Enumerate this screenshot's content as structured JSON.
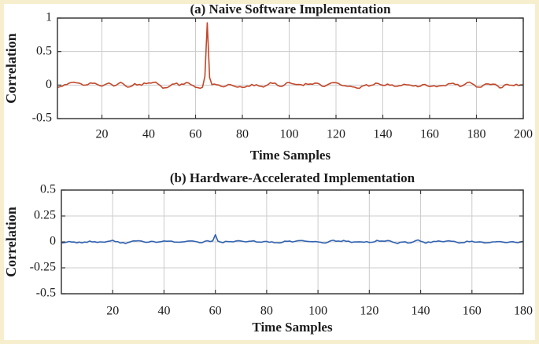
{
  "figure": {
    "frame_color": "#f6eecd",
    "background": "#ffffff",
    "text_color": "#1c1c1c",
    "axis_color": "#3a3a3a",
    "grid_color": "#cccccc"
  },
  "chart_data": [
    {
      "type": "line",
      "title": "(a) Naive Software Implementation",
      "xlabel": "Time Samples",
      "ylabel": "Correlation",
      "xlim": [
        1,
        200
      ],
      "ylim": [
        -0.5,
        1
      ],
      "xticks": [
        20,
        40,
        60,
        80,
        100,
        120,
        140,
        160,
        180,
        200
      ],
      "yticks": [
        1,
        0.5,
        0,
        -0.5
      ],
      "grid": true,
      "legend": "none",
      "series": [
        {
          "name": "naive-software-correlation",
          "color": "#c2472a",
          "baseline": 0,
          "noise_amplitude": 0.035,
          "noise_seed": 20,
          "peak": {
            "x": 65,
            "value": 0.93
          }
        }
      ]
    },
    {
      "type": "line",
      "title": "(b) Hardware-Accelerated Implementation",
      "xlabel": "Time Samples",
      "ylabel": "Correlation",
      "xlim": [
        0,
        180
      ],
      "ylim": [
        -0.5,
        0.5
      ],
      "xticks": [
        20,
        40,
        60,
        80,
        100,
        120,
        140,
        160,
        180
      ],
      "yticks": [
        0.5,
        0.25,
        0,
        -0.25,
        -0.5
      ],
      "grid": true,
      "legend": "none",
      "series": [
        {
          "name": "hardware-accelerated-correlation",
          "color": "#3162b0",
          "baseline": 0,
          "noise_amplitude": 0.014,
          "noise_seed": 77,
          "peak": {
            "x": 60,
            "value": 0.07
          }
        }
      ]
    }
  ]
}
